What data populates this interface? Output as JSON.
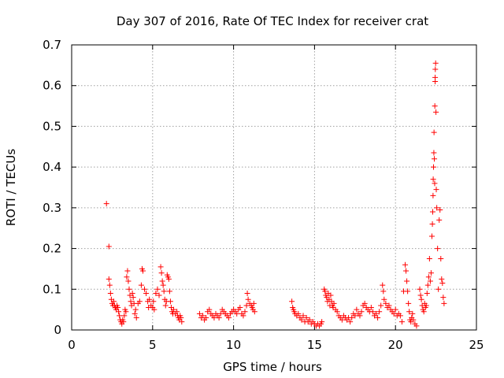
{
  "chart_data": {
    "type": "scatter",
    "title": "Day 307 of 2016, Rate Of TEC Index for receiver crat",
    "xlabel": "GPS time / hours",
    "ylabel": "ROTI / TECUs",
    "xlim": [
      0,
      25
    ],
    "ylim": [
      0,
      0.7
    ],
    "xticks": [
      "0",
      "5",
      "10",
      "15",
      "20",
      "25"
    ],
    "yticks": [
      "0",
      "0.1",
      "0.2",
      "0.3",
      "0.4",
      "0.5",
      "0.6",
      "0.7"
    ],
    "grid": true,
    "marker": "+",
    "color": "#ff0000",
    "series": [
      {
        "points": [
          [
            2.15,
            0.31
          ],
          [
            2.3,
            0.205
          ],
          [
            2.3,
            0.125
          ],
          [
            2.35,
            0.11
          ],
          [
            2.4,
            0.09
          ],
          [
            2.45,
            0.075
          ],
          [
            2.5,
            0.065
          ],
          [
            2.55,
            0.06
          ],
          [
            2.6,
            0.07
          ],
          [
            2.65,
            0.06
          ],
          [
            2.7,
            0.055
          ],
          [
            2.75,
            0.05
          ],
          [
            2.8,
            0.06
          ],
          [
            2.85,
            0.055
          ],
          [
            2.9,
            0.045
          ],
          [
            2.95,
            0.035
          ],
          [
            3.0,
            0.025
          ],
          [
            3.05,
            0.02
          ],
          [
            3.1,
            0.015
          ],
          [
            3.15,
            0.025
          ],
          [
            3.2,
            0.02
          ],
          [
            3.25,
            0.035
          ],
          [
            3.3,
            0.05
          ],
          [
            3.35,
            0.045
          ],
          [
            3.4,
            0.13
          ],
          [
            3.45,
            0.145
          ],
          [
            3.5,
            0.12
          ],
          [
            3.55,
            0.1
          ],
          [
            3.6,
            0.085
          ],
          [
            3.65,
            0.07
          ],
          [
            3.7,
            0.06
          ],
          [
            3.75,
            0.09
          ],
          [
            3.8,
            0.08
          ],
          [
            3.85,
            0.065
          ],
          [
            3.9,
            0.04
          ],
          [
            3.95,
            0.05
          ],
          [
            4.0,
            0.03
          ],
          [
            4.1,
            0.065
          ],
          [
            4.2,
            0.07
          ],
          [
            4.3,
            0.11
          ],
          [
            4.35,
            0.15
          ],
          [
            4.4,
            0.145
          ],
          [
            4.5,
            0.1
          ],
          [
            4.6,
            0.09
          ],
          [
            4.7,
            0.07
          ],
          [
            4.75,
            0.055
          ],
          [
            4.8,
            0.075
          ],
          [
            4.9,
            0.06
          ],
          [
            5.0,
            0.055
          ],
          [
            5.05,
            0.07
          ],
          [
            5.1,
            0.05
          ],
          [
            5.2,
            0.09
          ],
          [
            5.3,
            0.1
          ],
          [
            5.4,
            0.085
          ],
          [
            5.5,
            0.155
          ],
          [
            5.55,
            0.14
          ],
          [
            5.6,
            0.12
          ],
          [
            5.65,
            0.11
          ],
          [
            5.7,
            0.095
          ],
          [
            5.75,
            0.075
          ],
          [
            5.8,
            0.06
          ],
          [
            5.85,
            0.07
          ],
          [
            5.9,
            0.135
          ],
          [
            5.95,
            0.13
          ],
          [
            6.0,
            0.125
          ],
          [
            6.05,
            0.095
          ],
          [
            6.1,
            0.07
          ],
          [
            6.15,
            0.055
          ],
          [
            6.2,
            0.045
          ],
          [
            6.25,
            0.04
          ],
          [
            6.3,
            0.05
          ],
          [
            6.4,
            0.04
          ],
          [
            6.5,
            0.045
          ],
          [
            6.55,
            0.035
          ],
          [
            6.6,
            0.03
          ],
          [
            6.65,
            0.025
          ],
          [
            6.7,
            0.035
          ],
          [
            6.75,
            0.03
          ],
          [
            6.8,
            0.02
          ],
          [
            7.9,
            0.04
          ],
          [
            8.0,
            0.03
          ],
          [
            8.1,
            0.035
          ],
          [
            8.2,
            0.025
          ],
          [
            8.3,
            0.03
          ],
          [
            8.4,
            0.045
          ],
          [
            8.5,
            0.05
          ],
          [
            8.6,
            0.04
          ],
          [
            8.7,
            0.035
          ],
          [
            8.8,
            0.03
          ],
          [
            8.9,
            0.04
          ],
          [
            9.0,
            0.035
          ],
          [
            9.1,
            0.03
          ],
          [
            9.2,
            0.04
          ],
          [
            9.3,
            0.05
          ],
          [
            9.4,
            0.045
          ],
          [
            9.5,
            0.04
          ],
          [
            9.6,
            0.035
          ],
          [
            9.7,
            0.03
          ],
          [
            9.8,
            0.04
          ],
          [
            9.9,
            0.045
          ],
          [
            10.0,
            0.05
          ],
          [
            10.1,
            0.045
          ],
          [
            10.2,
            0.04
          ],
          [
            10.3,
            0.05
          ],
          [
            10.4,
            0.055
          ],
          [
            10.5,
            0.04
          ],
          [
            10.6,
            0.035
          ],
          [
            10.7,
            0.045
          ],
          [
            10.8,
            0.06
          ],
          [
            10.85,
            0.09
          ],
          [
            10.9,
            0.075
          ],
          [
            11.0,
            0.065
          ],
          [
            11.1,
            0.06
          ],
          [
            11.15,
            0.055
          ],
          [
            11.2,
            0.05
          ],
          [
            11.25,
            0.065
          ],
          [
            11.3,
            0.045
          ],
          [
            13.6,
            0.07
          ],
          [
            13.65,
            0.055
          ],
          [
            13.7,
            0.05
          ],
          [
            13.75,
            0.045
          ],
          [
            13.8,
            0.04
          ],
          [
            13.9,
            0.035
          ],
          [
            14.0,
            0.04
          ],
          [
            14.1,
            0.03
          ],
          [
            14.2,
            0.025
          ],
          [
            14.3,
            0.035
          ],
          [
            14.4,
            0.02
          ],
          [
            14.5,
            0.03
          ],
          [
            14.6,
            0.02
          ],
          [
            14.7,
            0.025
          ],
          [
            14.8,
            0.015
          ],
          [
            14.9,
            0.02
          ],
          [
            15.0,
            0.015
          ],
          [
            15.1,
            0.01
          ],
          [
            15.2,
            0.015
          ],
          [
            15.3,
            0.01
          ],
          [
            15.4,
            0.015
          ],
          [
            15.45,
            0.02
          ],
          [
            15.6,
            0.1
          ],
          [
            15.65,
            0.095
          ],
          [
            15.7,
            0.085
          ],
          [
            15.75,
            0.08
          ],
          [
            15.8,
            0.07
          ],
          [
            15.85,
            0.09
          ],
          [
            15.9,
            0.075
          ],
          [
            15.95,
            0.06
          ],
          [
            16.0,
            0.085
          ],
          [
            16.05,
            0.07
          ],
          [
            16.1,
            0.06
          ],
          [
            16.15,
            0.055
          ],
          [
            16.2,
            0.065
          ],
          [
            16.3,
            0.05
          ],
          [
            16.4,
            0.045
          ],
          [
            16.5,
            0.035
          ],
          [
            16.6,
            0.03
          ],
          [
            16.7,
            0.025
          ],
          [
            16.8,
            0.035
          ],
          [
            16.9,
            0.03
          ],
          [
            17.0,
            0.025
          ],
          [
            17.1,
            0.03
          ],
          [
            17.2,
            0.02
          ],
          [
            17.3,
            0.03
          ],
          [
            17.4,
            0.04
          ],
          [
            17.5,
            0.035
          ],
          [
            17.6,
            0.05
          ],
          [
            17.7,
            0.04
          ],
          [
            17.8,
            0.035
          ],
          [
            17.9,
            0.045
          ],
          [
            18.0,
            0.06
          ],
          [
            18.1,
            0.065
          ],
          [
            18.2,
            0.055
          ],
          [
            18.3,
            0.05
          ],
          [
            18.4,
            0.045
          ],
          [
            18.5,
            0.055
          ],
          [
            18.6,
            0.045
          ],
          [
            18.7,
            0.035
          ],
          [
            18.8,
            0.04
          ],
          [
            18.9,
            0.03
          ],
          [
            19.0,
            0.045
          ],
          [
            19.1,
            0.06
          ],
          [
            19.2,
            0.11
          ],
          [
            19.25,
            0.095
          ],
          [
            19.3,
            0.075
          ],
          [
            19.4,
            0.065
          ],
          [
            19.5,
            0.055
          ],
          [
            19.6,
            0.06
          ],
          [
            19.7,
            0.05
          ],
          [
            19.8,
            0.045
          ],
          [
            19.9,
            0.04
          ],
          [
            20.0,
            0.05
          ],
          [
            20.1,
            0.035
          ],
          [
            20.2,
            0.04
          ],
          [
            20.3,
            0.035
          ],
          [
            20.4,
            0.02
          ],
          [
            20.5,
            0.095
          ],
          [
            20.6,
            0.16
          ],
          [
            20.65,
            0.145
          ],
          [
            20.7,
            0.12
          ],
          [
            20.75,
            0.095
          ],
          [
            20.8,
            0.065
          ],
          [
            20.85,
            0.045
          ],
          [
            20.9,
            0.025
          ],
          [
            20.95,
            0.02
          ],
          [
            21.0,
            0.03
          ],
          [
            21.05,
            0.04
          ],
          [
            21.1,
            0.025
          ],
          [
            21.2,
            0.015
          ],
          [
            21.3,
            0.01
          ],
          [
            21.5,
            0.1
          ],
          [
            21.55,
            0.085
          ],
          [
            21.6,
            0.075
          ],
          [
            21.65,
            0.06
          ],
          [
            21.7,
            0.05
          ],
          [
            21.75,
            0.045
          ],
          [
            21.8,
            0.065
          ],
          [
            21.85,
            0.055
          ],
          [
            21.9,
            0.06
          ],
          [
            21.95,
            0.09
          ],
          [
            22.0,
            0.11
          ],
          [
            22.05,
            0.13
          ],
          [
            22.1,
            0.175
          ],
          [
            22.15,
            0.12
          ],
          [
            22.2,
            0.14
          ],
          [
            22.25,
            0.23
          ],
          [
            22.28,
            0.26
          ],
          [
            22.3,
            0.29
          ],
          [
            22.32,
            0.33
          ],
          [
            22.33,
            0.37
          ],
          [
            22.35,
            0.4
          ],
          [
            22.37,
            0.435
          ],
          [
            22.38,
            0.485
          ],
          [
            22.4,
            0.42
          ],
          [
            22.42,
            0.36
          ],
          [
            22.43,
            0.55
          ],
          [
            22.45,
            0.61
          ],
          [
            22.45,
            0.62
          ],
          [
            22.46,
            0.64
          ],
          [
            22.48,
            0.655
          ],
          [
            22.5,
            0.535
          ],
          [
            22.52,
            0.345
          ],
          [
            22.55,
            0.3
          ],
          [
            22.6,
            0.2
          ],
          [
            22.65,
            0.1
          ],
          [
            22.7,
            0.27
          ],
          [
            22.75,
            0.295
          ],
          [
            22.8,
            0.175
          ],
          [
            22.85,
            0.125
          ],
          [
            22.9,
            0.115
          ],
          [
            22.95,
            0.08
          ],
          [
            23.0,
            0.065
          ]
        ]
      }
    ]
  }
}
